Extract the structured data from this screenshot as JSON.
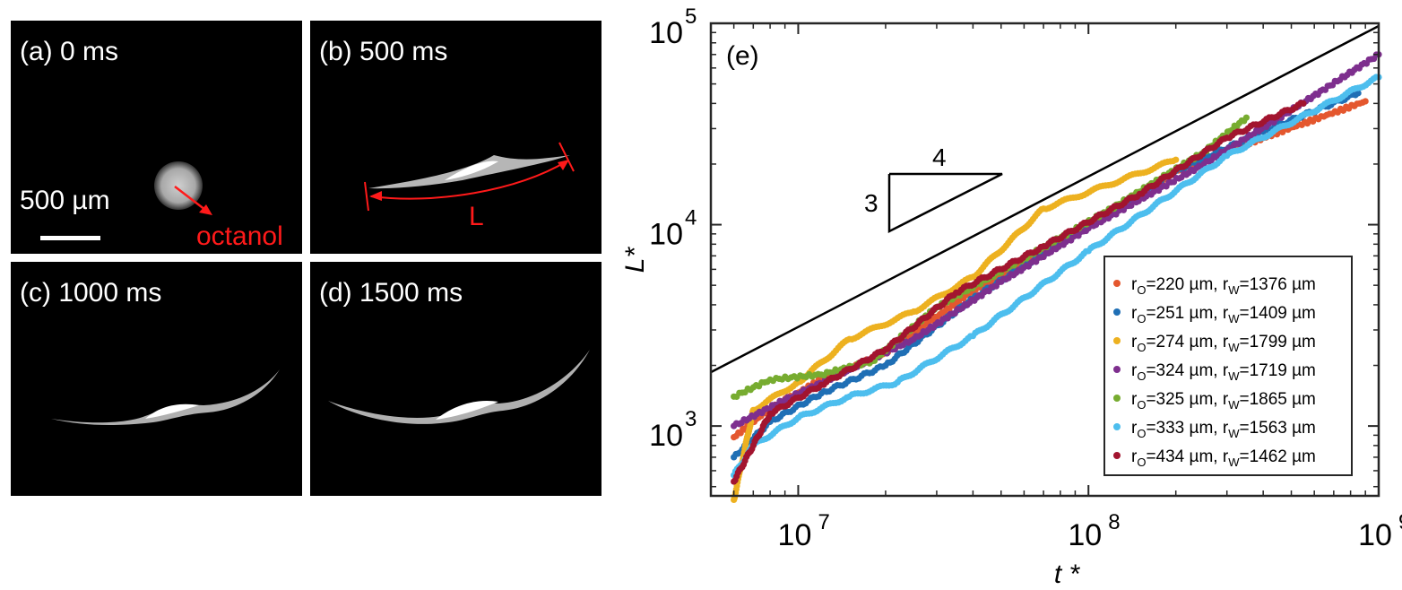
{
  "panels": [
    {
      "label": "(a) 0 ms"
    },
    {
      "label": "(b) 500 ms"
    },
    {
      "label": "(c) 1000 ms"
    },
    {
      "label": "(d) 1500 ms"
    }
  ],
  "annotations": {
    "scale_bar": "500 µm",
    "octanol": "octanol",
    "length": "L"
  },
  "colors": {
    "annotation": "#ff1a1a"
  },
  "chart_data": {
    "type": "scatter",
    "panel_label": "(e)",
    "xlabel": "t *",
    "ylabel": "L*",
    "xscale": "log",
    "yscale": "log",
    "xlim": [
      5000000,
      1000000000
    ],
    "ylim": [
      450,
      100000
    ],
    "x_ticks": [
      {
        "base": "10",
        "exp": "7"
      },
      {
        "base": "10",
        "exp": "8"
      },
      {
        "base": "10",
        "exp": "9"
      }
    ],
    "y_ticks": [
      {
        "base": "10",
        "exp": "3"
      },
      {
        "base": "10",
        "exp": "4"
      },
      {
        "base": "10",
        "exp": "5"
      }
    ],
    "reference_line": {
      "slope": 0.75,
      "x": [
        5000000,
        1000000000
      ],
      "y": [
        1850,
        97000
      ]
    },
    "slope_triangle": {
      "run": "4",
      "rise": "3"
    },
    "legend_position": "bottom-right",
    "series": [
      {
        "ro": "220",
        "rw": "1376",
        "color": "#E4572E",
        "x": [
          6000000,
          8000000,
          12000000,
          20000000,
          40000000,
          80000000,
          200000000,
          400000000,
          900000000
        ],
        "y": [
          880,
          1220,
          1700,
          2300,
          4700,
          8200,
          18500,
          27000,
          41000
        ]
      },
      {
        "ro": "251",
        "rw": "1409",
        "color": "#1F6FB5",
        "x": [
          6000000,
          8000000,
          12000000,
          20000000,
          40000000,
          80000000,
          200000000,
          400000000,
          850000000
        ],
        "y": [
          700,
          1050,
          1450,
          2000,
          4300,
          8100,
          18500,
          29000,
          45000
        ]
      },
      {
        "ro": "274",
        "rw": "1799",
        "color": "#EDB120",
        "x": [
          6000000,
          7000000,
          10000000,
          15000000,
          25000000,
          40000000,
          70000000,
          200000000
        ],
        "y": [
          430,
          1200,
          1650,
          2700,
          3700,
          5500,
          12000,
          21000
        ]
      },
      {
        "ro": "324",
        "rw": "1719",
        "color": "#7E2F8E",
        "x": [
          6000000,
          9000000,
          15000000,
          25000000,
          50000000,
          100000000,
          250000000,
          500000000,
          1000000000
        ],
        "y": [
          1000,
          1350,
          1900,
          2700,
          5200,
          9600,
          20000,
          37000,
          70000
        ]
      },
      {
        "ro": "325",
        "rw": "1865",
        "color": "#77AC30",
        "x": [
          6000000,
          8000000,
          12000000,
          18000000,
          30000000,
          60000000,
          120000000,
          250000000,
          350000000
        ],
        "y": [
          1400,
          1700,
          1800,
          2100,
          3900,
          6800,
          12000,
          23000,
          34000
        ]
      },
      {
        "ro": "333",
        "rw": "1563",
        "color": "#4DBEEE",
        "x": [
          6000000,
          7000000,
          10000000,
          15000000,
          22000000,
          40000000,
          100000000,
          300000000,
          1000000000
        ],
        "y": [
          570,
          800,
          1100,
          1400,
          1650,
          2800,
          7400,
          22000,
          54000
        ]
      },
      {
        "ro": "434",
        "rw": "1462",
        "color": "#A2142F",
        "x": [
          6000000,
          8000000,
          12000000,
          20000000,
          35000000,
          70000000,
          150000000,
          300000000,
          550000000
        ],
        "y": [
          530,
          1150,
          1600,
          2400,
          4600,
          7800,
          14200,
          27000,
          40000
        ]
      }
    ]
  }
}
